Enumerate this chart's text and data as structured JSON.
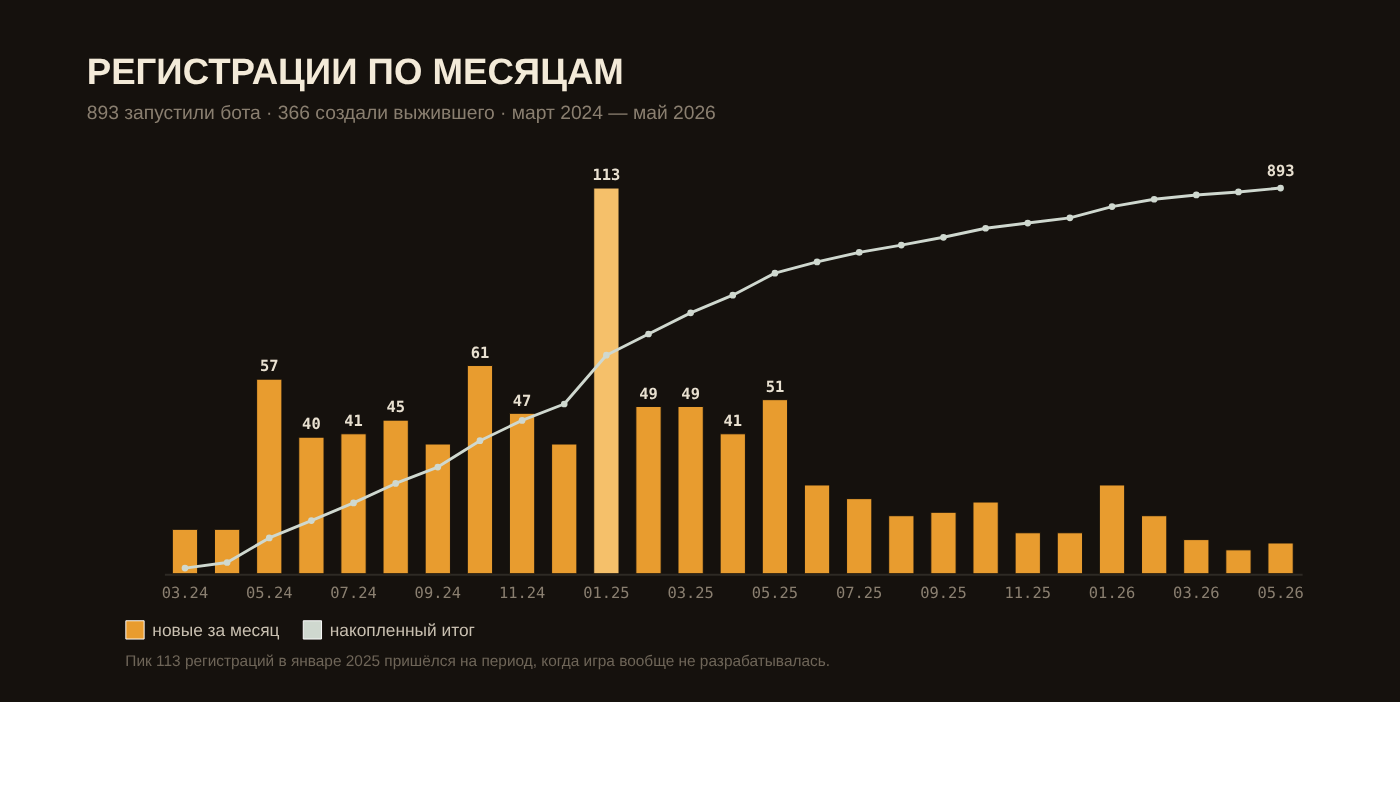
{
  "chart_data": {
    "type": "bar",
    "title": "РЕГИСТРАЦИИ ПО МЕСЯЦАМ",
    "subtitle": "893 запустили бота · 366 создали выжившего · март 2024 — май 2026",
    "categories": [
      "03.24",
      null,
      "05.24",
      null,
      "07.24",
      null,
      "09.24",
      null,
      "11.24",
      null,
      "01.25",
      null,
      "03.25",
      null,
      "05.25",
      null,
      "07.25",
      null,
      "09.25",
      null,
      "11.25",
      null,
      "01.26",
      null,
      "03.26",
      null,
      "05.26"
    ],
    "series": [
      {
        "name": "новые за месяц",
        "color": "#e89c2f",
        "colors": [
          "#e89c2f",
          "#e89c2f",
          "#e89c2f",
          "#e89c2f",
          "#e89c2f",
          "#e89c2f",
          "#e89c2f",
          "#e89c2f",
          "#e89c2f",
          "#e89c2f",
          "#f5c06a",
          "#e89c2f",
          "#e89c2f",
          "#e89c2f",
          "#e89c2f",
          "#e89c2f",
          "#e89c2f",
          "#e89c2f",
          "#e89c2f",
          "#e89c2f",
          "#e89c2f",
          "#e89c2f",
          "#e89c2f",
          "#e89c2f",
          "#e89c2f",
          "#e89c2f",
          "#e89c2f"
        ],
        "values": [
          13,
          13,
          57,
          40,
          41,
          45,
          38,
          61,
          47,
          38,
          113,
          49,
          49,
          41,
          51,
          26,
          22,
          17,
          18,
          21,
          12,
          12,
          26,
          17,
          10,
          7,
          9
        ],
        "value_labels": [
          null,
          null,
          "57",
          "40",
          "41",
          "45",
          null,
          "61",
          "47",
          null,
          "113",
          "49",
          "49",
          "41",
          "51",
          null,
          null,
          null,
          null,
          null,
          null,
          null,
          null,
          null,
          null,
          null,
          null
        ]
      },
      {
        "name": "накопленный итог",
        "type": "line",
        "axis": "y2",
        "color": "#cfd8cf",
        "values": [
          13,
          26,
          83,
          123,
          164,
          209,
          247,
          308,
          355,
          393,
          506,
          555,
          604,
          645,
          696,
          722,
          744,
          761,
          779,
          800,
          812,
          824,
          850,
          867,
          877,
          884,
          893
        ],
        "value_labels": [
          null,
          null,
          null,
          null,
          null,
          null,
          null,
          null,
          null,
          null,
          null,
          null,
          null,
          null,
          null,
          null,
          null,
          null,
          null,
          null,
          null,
          null,
          null,
          null,
          null,
          null,
          "893"
        ]
      }
    ],
    "ylim": [
      0,
      113
    ],
    "y2lim": [
      0,
      893
    ],
    "tick_labels": "x",
    "grid": false,
    "legend": "bottom left",
    "marker": "circle",
    "line_style": "solid",
    "annotations": [
      "Пик 113 регистраций в январе 2025 пришёлся на период, когда игра вообще не разрабатывалась."
    ]
  }
}
